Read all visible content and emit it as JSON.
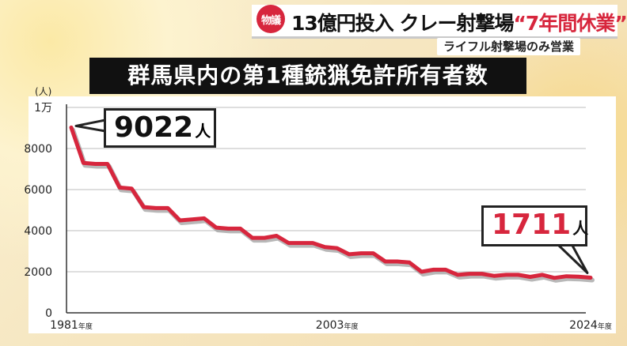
{
  "header": {
    "badge": "物議",
    "headline_main": "13億円投入 クレー射撃場",
    "headline_highlight": "“7年間休業”",
    "subhead": "ライフル射撃場のみ営業"
  },
  "callouts": {
    "start_value": "9022",
    "start_unit": "人",
    "end_value": "1711",
    "end_unit": "人"
  },
  "colors": {
    "line": "#d7263d",
    "shadow": "#9a9a9a",
    "accent": "#d7263d"
  },
  "chart_data": {
    "type": "line",
    "title": "群馬県内の第1種銃猟免許所有者数",
    "ylabel": "(人)",
    "ylim": [
      0,
      10000
    ],
    "y_ticks": [
      {
        "value": 0,
        "label": "0"
      },
      {
        "value": 2000,
        "label": "2000"
      },
      {
        "value": 4000,
        "label": "4000"
      },
      {
        "value": 6000,
        "label": "6000"
      },
      {
        "value": 8000,
        "label": "8000"
      },
      {
        "value": 10000,
        "label": "1万"
      }
    ],
    "x_ticks": [
      {
        "year": 1981,
        "label": "1981",
        "suffix": "年度"
      },
      {
        "year": 2003,
        "label": "2003",
        "suffix": "年度"
      },
      {
        "year": 2024,
        "label": "2024",
        "suffix": "年度"
      }
    ],
    "xlim": [
      1981,
      2024
    ],
    "grid": true,
    "series": [
      {
        "x": [
          1981,
          1982,
          1983,
          1984,
          1985,
          1986,
          1987,
          1988,
          1989,
          1990,
          1991,
          1992,
          1993,
          1994,
          1995,
          1996,
          1997,
          1998,
          1999,
          2000,
          2001,
          2002,
          2003,
          2004,
          2005,
          2006,
          2007,
          2008,
          2009,
          2010,
          2011,
          2012,
          2013,
          2014,
          2015,
          2016,
          2017,
          2018,
          2019,
          2020,
          2021,
          2022,
          2023,
          2024
        ],
        "values": [
          9022,
          7300,
          7250,
          7250,
          6100,
          6050,
          5150,
          5100,
          5100,
          4500,
          4550,
          4600,
          4150,
          4100,
          4100,
          3650,
          3650,
          3750,
          3400,
          3400,
          3400,
          3200,
          3150,
          2850,
          2900,
          2900,
          2500,
          2500,
          2450,
          2000,
          2100,
          2100,
          1850,
          1900,
          1900,
          1800,
          1850,
          1850,
          1750,
          1850,
          1700,
          1780,
          1760,
          1711
        ]
      }
    ]
  }
}
